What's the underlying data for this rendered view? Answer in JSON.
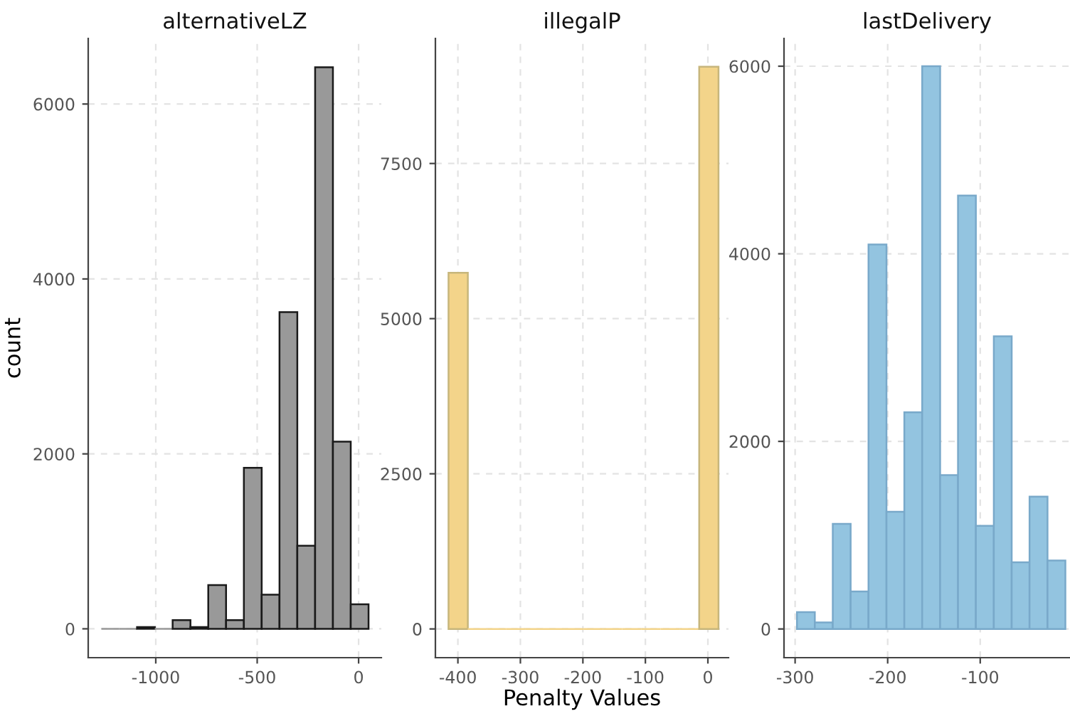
{
  "chart_data": [
    {
      "type": "histogram",
      "title": "alternativeLZ",
      "ylabel": "count",
      "color": "#999999",
      "grid": true,
      "bins": [
        -1268,
        -1180.2,
        -1092.4,
        -1004.6,
        -916.8,
        -829,
        -741.2,
        -653.4,
        -565.6,
        -477.8,
        -390,
        -302.2,
        -214.4,
        -126.6,
        -38.8,
        49
      ],
      "values": [
        0,
        0,
        20,
        0,
        100,
        20,
        500,
        100,
        1840,
        390,
        3620,
        950,
        6420,
        2140,
        280
      ],
      "xlim": [
        -1333,
        112
      ],
      "xticks": [
        -1000,
        -500,
        0
      ],
      "ylim": [
        -330,
        6750
      ],
      "yticks": [
        0,
        2000,
        4000,
        6000
      ]
    },
    {
      "type": "histogram",
      "title": "illegalP",
      "xlabel": "Penalty Values",
      "color": "#f3d48a",
      "grid": true,
      "bins": [
        -415,
        -384.1,
        -353.3,
        -322.4,
        -291.6,
        -260.7,
        -229.9,
        -199,
        -168.1,
        -137.3,
        -106.4,
        -75.6,
        -44.7,
        -13.9,
        17
      ],
      "values": [
        5740,
        0,
        0,
        0,
        0,
        0,
        0,
        0,
        0,
        0,
        0,
        0,
        0,
        9060
      ],
      "xlim": [
        -436,
        33
      ],
      "xticks": [
        -400,
        -300,
        -200,
        -100,
        0
      ],
      "ylim": [
        -463,
        9515
      ],
      "yticks": [
        0,
        2500,
        5000,
        7500
      ]
    },
    {
      "type": "histogram",
      "title": "lastDelivery",
      "color": "#93c4e0",
      "grid": true,
      "bins": [
        -298,
        -278.7,
        -259.3,
        -240,
        -220.7,
        -201.3,
        -182,
        -162.7,
        -143.3,
        -124,
        -104.7,
        -85.3,
        -66,
        -46.7,
        -27.3,
        -8
      ],
      "values": [
        180,
        70,
        1120,
        400,
        4100,
        1250,
        2310,
        6000,
        1640,
        4620,
        1100,
        3120,
        710,
        1410,
        730
      ],
      "xlim": [
        -312,
        -3
      ],
      "xticks": [
        -300,
        -200,
        -100
      ],
      "ylim": [
        -306,
        6296
      ],
      "yticks": [
        0,
        2000,
        4000,
        6000
      ]
    }
  ]
}
